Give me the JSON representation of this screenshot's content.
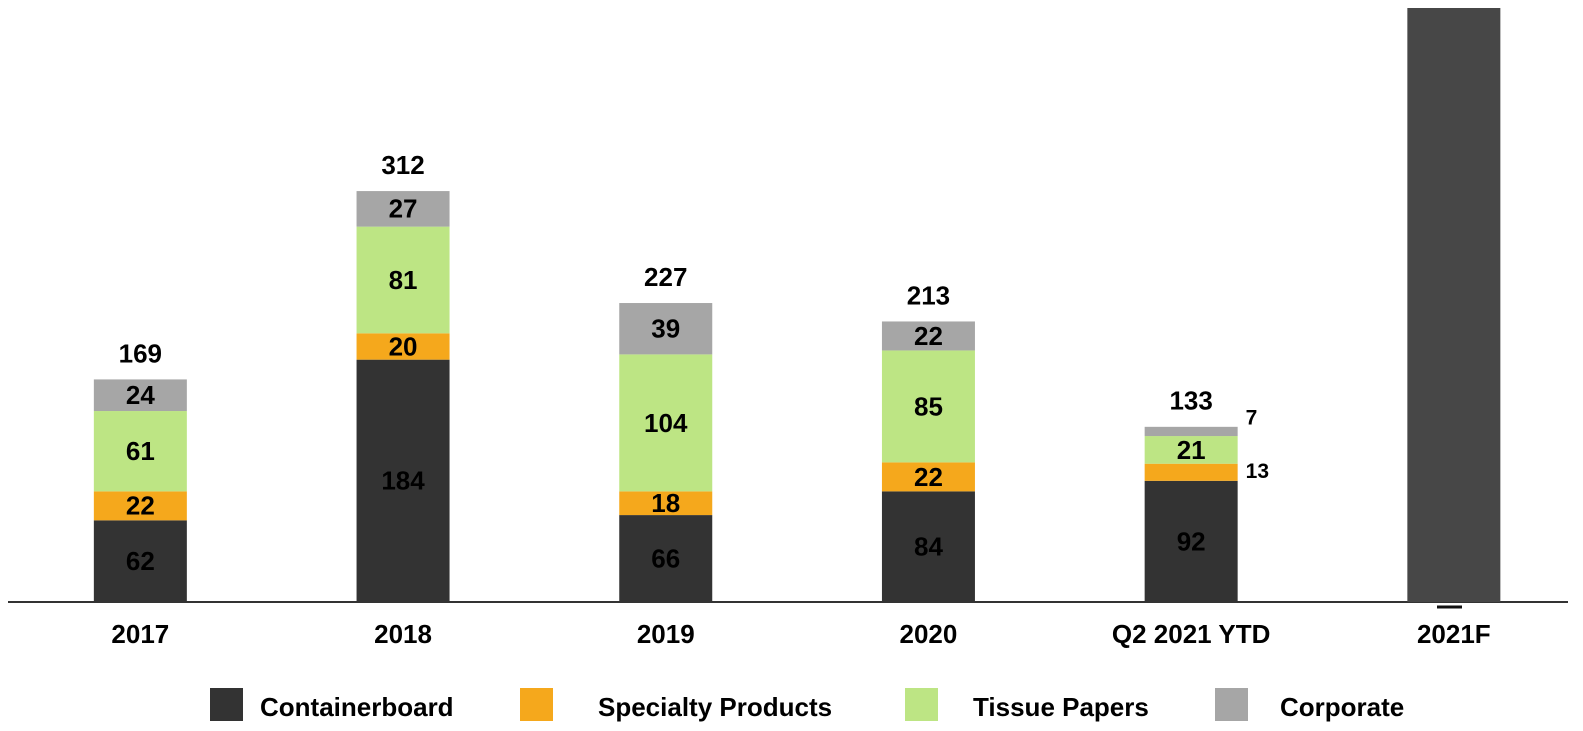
{
  "chart_data": {
    "type": "stacked_bar",
    "categories": [
      "2017",
      "2018",
      "2019",
      "2020",
      "Q2 2021 YTD",
      "2021F"
    ],
    "series": [
      {
        "name": "Containerboard",
        "color": "#333333",
        "values": [
          62,
          184,
          66,
          84,
          92,
          null
        ]
      },
      {
        "name": "Specialty Products",
        "color": "#f5a81c",
        "values": [
          22,
          20,
          18,
          22,
          13,
          null
        ]
      },
      {
        "name": "Tissue Papers",
        "color": "#bde584",
        "values": [
          61,
          81,
          104,
          85,
          21,
          null
        ]
      },
      {
        "name": "Corporate",
        "color": "#a6a6a6",
        "values": [
          24,
          27,
          39,
          22,
          7,
          null
        ]
      }
    ],
    "totals": [
      169,
      312,
      227,
      213,
      133,
      null
    ],
    "forecast": {
      "color": "#474747",
      "values": [
        null,
        null,
        null,
        null,
        null,
        451
      ]
    },
    "ylim": [
      0,
      451
    ]
  }
}
